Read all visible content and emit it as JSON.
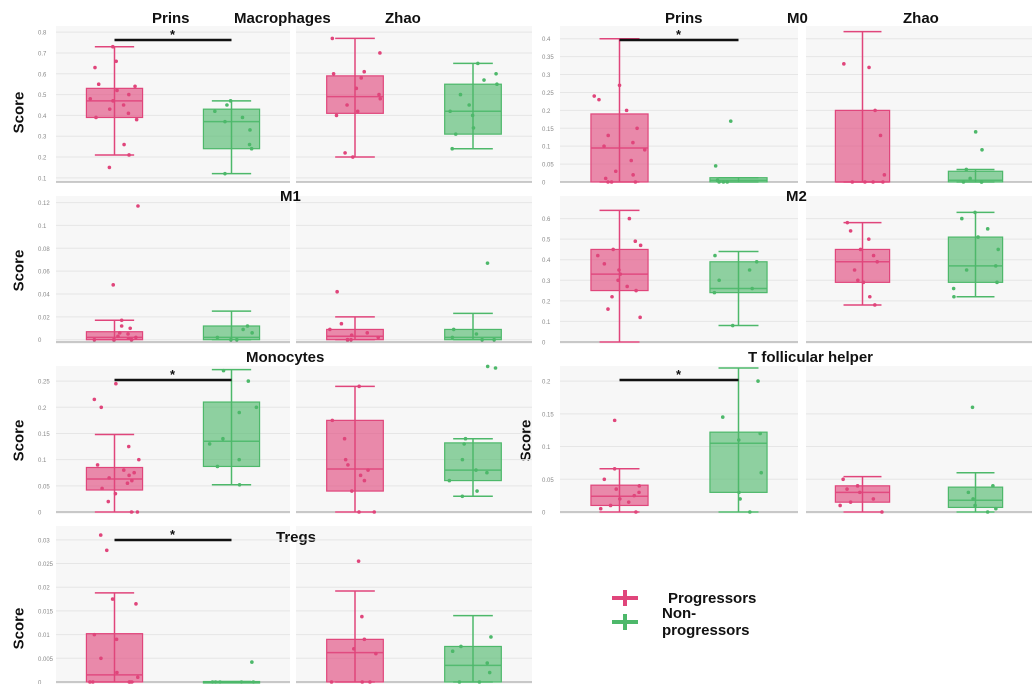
{
  "colors": {
    "progressors": "#e0457b",
    "non_progressors": "#4db86a",
    "bracket": "#111111",
    "panel_bg": "#f7f7f7",
    "grid": "#e6e6e6",
    "tick": "#888888"
  },
  "labels": {
    "score": "Score",
    "prins": "Prins",
    "zhao": "Zhao",
    "macrophages": "Macrophages",
    "m0": "M0",
    "m1": "M1",
    "m2": "M2",
    "monocytes": "Monocytes",
    "tfh": "T follicular helper",
    "tregs": "Tregs",
    "star": "*"
  },
  "legend": [
    {
      "label": "Progressors",
      "color": "#e0457b"
    },
    {
      "label": "Non-progressors",
      "color": "#4db86a"
    }
  ],
  "chart_data": [
    {
      "type": "box",
      "cell": "Macrophages",
      "dataset": "Prins",
      "ylim": [
        0.08,
        0.82
      ],
      "ticks": [
        "0.1",
        "0.2",
        "0.3",
        "0.4",
        "0.5",
        "0.6",
        "0.7",
        "0.8"
      ],
      "tickvals": [
        0.1,
        0.2,
        0.3,
        0.4,
        0.5,
        0.6,
        0.7,
        0.8
      ],
      "significant": true,
      "groups": [
        {
          "group": "Progressors",
          "min": 0.21,
          "q1": 0.39,
          "median": 0.47,
          "q3": 0.53,
          "max": 0.73,
          "points": [
            0.15,
            0.21,
            0.26,
            0.38,
            0.39,
            0.41,
            0.43,
            0.45,
            0.47,
            0.48,
            0.5,
            0.52,
            0.54,
            0.55,
            0.63,
            0.66,
            0.73
          ]
        },
        {
          "group": "Non-progressors",
          "min": 0.12,
          "q1": 0.24,
          "median": 0.37,
          "q3": 0.43,
          "max": 0.47,
          "points": [
            0.12,
            0.24,
            0.26,
            0.33,
            0.37,
            0.39,
            0.42,
            0.45,
            0.47
          ]
        }
      ]
    },
    {
      "type": "box",
      "cell": "Macrophages",
      "dataset": "Zhao",
      "ylim": [
        0.08,
        0.82
      ],
      "significant": false,
      "groups": [
        {
          "group": "Progressors",
          "min": 0.2,
          "q1": 0.41,
          "median": 0.49,
          "q3": 0.59,
          "max": 0.77,
          "points": [
            0.2,
            0.22,
            0.4,
            0.42,
            0.45,
            0.48,
            0.5,
            0.53,
            0.58,
            0.6,
            0.61,
            0.7,
            0.77
          ]
        },
        {
          "group": "Non-progressors",
          "min": 0.24,
          "q1": 0.31,
          "median": 0.42,
          "q3": 0.55,
          "max": 0.65,
          "points": [
            0.24,
            0.31,
            0.34,
            0.4,
            0.42,
            0.45,
            0.5,
            0.55,
            0.57,
            0.6,
            0.65
          ]
        }
      ]
    },
    {
      "type": "box",
      "cell": "M0",
      "dataset": "Prins",
      "ylim": [
        0,
        0.43
      ],
      "ticks": [
        "0",
        "0.05",
        "0.1",
        "0.15",
        "0.2",
        "0.25",
        "0.3",
        "0.35",
        "0.4"
      ],
      "tickvals": [
        0,
        0.05,
        0.1,
        0.15,
        0.2,
        0.25,
        0.3,
        0.35,
        0.4
      ],
      "significant": true,
      "groups": [
        {
          "group": "Progressors",
          "min": 0,
          "q1": 0,
          "median": 0.095,
          "q3": 0.19,
          "max": 0.4,
          "points": [
            0,
            0,
            0,
            0.01,
            0.02,
            0.03,
            0.06,
            0.09,
            0.1,
            0.11,
            0.13,
            0.15,
            0.2,
            0.23,
            0.24,
            0.27
          ]
        },
        {
          "group": "Non-progressors",
          "min": 0,
          "q1": 0,
          "median": 0.005,
          "q3": 0.012,
          "max": 0.012,
          "points": [
            0,
            0,
            0,
            0.005,
            0.045,
            0.17
          ]
        }
      ]
    },
    {
      "type": "box",
      "cell": "M0",
      "dataset": "Zhao",
      "ylim": [
        0,
        0.43
      ],
      "significant": false,
      "groups": [
        {
          "group": "Progressors",
          "min": 0,
          "q1": 0,
          "median": 0,
          "q3": 0.2,
          "max": 0.42,
          "points": [
            0,
            0,
            0,
            0,
            0.02,
            0.13,
            0.2,
            0.32,
            0.33
          ]
        },
        {
          "group": "Non-progressors",
          "min": 0,
          "q1": 0,
          "median": 0.005,
          "q3": 0.03,
          "max": 0.035,
          "points": [
            0,
            0,
            0,
            0.01,
            0.035,
            0.09,
            0.14
          ]
        }
      ]
    },
    {
      "type": "box",
      "cell": "M1",
      "dataset": "Prins",
      "ylim": [
        -0.002,
        0.124
      ],
      "ticks": [
        "0",
        "0.02",
        "0.04",
        "0.06",
        "0.08",
        "0.1",
        "0.12"
      ],
      "tickvals": [
        0,
        0.02,
        0.04,
        0.06,
        0.08,
        0.1,
        0.12
      ],
      "significant": false,
      "groups": [
        {
          "group": "Progressors",
          "min": 0,
          "q1": 0,
          "median": 0.002,
          "q3": 0.007,
          "max": 0.017,
          "points": [
            0,
            0,
            0,
            0,
            0.001,
            0.002,
            0.003,
            0.005,
            0.006,
            0.01,
            0.012,
            0.017,
            0.048,
            0.117
          ]
        },
        {
          "group": "Non-progressors",
          "min": 0,
          "q1": 0,
          "median": 0.002,
          "q3": 0.012,
          "max": 0.025,
          "points": [
            0,
            0,
            0.002,
            0.006,
            0.009,
            0.012
          ]
        }
      ]
    },
    {
      "type": "box",
      "cell": "M1",
      "dataset": "Zhao",
      "ylim": [
        -0.002,
        0.124
      ],
      "significant": false,
      "groups": [
        {
          "group": "Progressors",
          "min": 0,
          "q1": 0,
          "median": 0.003,
          "q3": 0.009,
          "max": 0.02,
          "points": [
            0,
            0,
            0,
            0.002,
            0.004,
            0.006,
            0.009,
            0.014,
            0.042
          ]
        },
        {
          "group": "Non-progressors",
          "min": 0,
          "q1": 0,
          "median": 0.002,
          "q3": 0.009,
          "max": 0.023,
          "points": [
            0,
            0,
            0.002,
            0.005,
            0.009,
            0.067
          ]
        }
      ]
    },
    {
      "type": "box",
      "cell": "M2",
      "dataset": "Prins",
      "ylim": [
        0,
        0.7
      ],
      "ticks": [
        "0",
        "0.1",
        "0.2",
        "0.3",
        "0.4",
        "0.5",
        "0.6"
      ],
      "tickvals": [
        0,
        0.1,
        0.2,
        0.3,
        0.4,
        0.5,
        0.6
      ],
      "significant": false,
      "groups": [
        {
          "group": "Progressors",
          "min": 0,
          "q1": 0.25,
          "median": 0.33,
          "q3": 0.45,
          "max": 0.64,
          "points": [
            0.12,
            0.16,
            0.22,
            0.25,
            0.27,
            0.3,
            0.33,
            0.35,
            0.38,
            0.42,
            0.45,
            0.47,
            0.49,
            0.6
          ]
        },
        {
          "group": "Non-progressors",
          "min": 0.08,
          "q1": 0.24,
          "median": 0.26,
          "q3": 0.39,
          "max": 0.44,
          "points": [
            0.08,
            0.24,
            0.26,
            0.3,
            0.35,
            0.39,
            0.42
          ]
        }
      ]
    },
    {
      "type": "box",
      "cell": "M2",
      "dataset": "Zhao",
      "ylim": [
        0,
        0.7
      ],
      "significant": false,
      "groups": [
        {
          "group": "Progressors",
          "min": 0.18,
          "q1": 0.29,
          "median": 0.39,
          "q3": 0.45,
          "max": 0.58,
          "points": [
            0.18,
            0.22,
            0.29,
            0.3,
            0.35,
            0.39,
            0.42,
            0.45,
            0.5,
            0.54,
            0.58
          ]
        },
        {
          "group": "Non-progressors",
          "min": 0.22,
          "q1": 0.29,
          "median": 0.37,
          "q3": 0.51,
          "max": 0.63,
          "points": [
            0.22,
            0.26,
            0.29,
            0.35,
            0.37,
            0.45,
            0.51,
            0.55,
            0.6,
            0.63
          ]
        }
      ]
    },
    {
      "type": "box",
      "cell": "Monocytes",
      "dataset": "Prins",
      "ylim": [
        0,
        0.275
      ],
      "ticks": [
        "0",
        "0.05",
        "0.1",
        "0.15",
        "0.2",
        "0.25"
      ],
      "tickvals": [
        0,
        0.05,
        0.1,
        0.15,
        0.2,
        0.25
      ],
      "significant": true,
      "groups": [
        {
          "group": "Progressors",
          "min": 0,
          "q1": 0.042,
          "median": 0.063,
          "q3": 0.085,
          "max": 0.148,
          "points": [
            0,
            0,
            0.02,
            0.035,
            0.045,
            0.055,
            0.06,
            0.065,
            0.07,
            0.075,
            0.08,
            0.09,
            0.1,
            0.125,
            0.2,
            0.215,
            0.245
          ]
        },
        {
          "group": "Non-progressors",
          "min": 0.052,
          "q1": 0.087,
          "median": 0.135,
          "q3": 0.21,
          "max": 0.272,
          "points": [
            0.052,
            0.087,
            0.1,
            0.13,
            0.14,
            0.19,
            0.2,
            0.25,
            0.27
          ]
        }
      ]
    },
    {
      "type": "box",
      "cell": "Monocytes",
      "dataset": "Zhao",
      "ylim": [
        0,
        0.275
      ],
      "significant": false,
      "groups": [
        {
          "group": "Progressors",
          "min": 0,
          "q1": 0.04,
          "median": 0.082,
          "q3": 0.175,
          "max": 0.24,
          "points": [
            0,
            0,
            0.04,
            0.06,
            0.07,
            0.08,
            0.09,
            0.1,
            0.14,
            0.175,
            0.24
          ]
        },
        {
          "group": "Non-progressors",
          "min": 0.03,
          "q1": 0.06,
          "median": 0.08,
          "q3": 0.132,
          "max": 0.14,
          "points": [
            0.03,
            0.04,
            0.06,
            0.075,
            0.08,
            0.1,
            0.13,
            0.14,
            0.275,
            0.278
          ]
        }
      ]
    },
    {
      "type": "box",
      "cell": "T follicular helper",
      "dataset": "Prins",
      "ylim": [
        0,
        0.22
      ],
      "ticks": [
        "0",
        "0.05",
        "0.1",
        "0.15",
        "0.2"
      ],
      "tickvals": [
        0,
        0.05,
        0.1,
        0.15,
        0.2
      ],
      "significant": true,
      "groups": [
        {
          "group": "Progressors",
          "min": 0,
          "q1": 0.01,
          "median": 0.024,
          "q3": 0.041,
          "max": 0.066,
          "points": [
            0,
            0.005,
            0.01,
            0.015,
            0.02,
            0.025,
            0.03,
            0.035,
            0.04,
            0.05,
            0.066,
            0.14
          ]
        },
        {
          "group": "Non-progressors",
          "min": 0,
          "q1": 0.03,
          "median": 0.105,
          "q3": 0.122,
          "max": 0.22,
          "points": [
            0,
            0.02,
            0.03,
            0.06,
            0.11,
            0.12,
            0.145,
            0.2
          ]
        }
      ]
    },
    {
      "type": "box",
      "cell": "T follicular helper",
      "dataset": "Zhao",
      "ylim": [
        0,
        0.22
      ],
      "significant": false,
      "groups": [
        {
          "group": "Progressors",
          "min": 0,
          "q1": 0.015,
          "median": 0.03,
          "q3": 0.04,
          "max": 0.054,
          "points": [
            0,
            0.01,
            0.015,
            0.02,
            0.03,
            0.035,
            0.04,
            0.05
          ]
        },
        {
          "group": "Non-progressors",
          "min": 0,
          "q1": 0.007,
          "median": 0.018,
          "q3": 0.038,
          "max": 0.06,
          "points": [
            0,
            0.005,
            0.01,
            0.02,
            0.03,
            0.04,
            0.16
          ]
        }
      ]
    },
    {
      "type": "box",
      "cell": "Tregs",
      "dataset": "Prins",
      "ylim": [
        0,
        0.0325
      ],
      "ticks": [
        "0",
        "0.005",
        "0.01",
        "0.015",
        "0.02",
        "0.025",
        "0.03"
      ],
      "tickvals": [
        0,
        0.005,
        0.01,
        0.015,
        0.02,
        0.025,
        0.03
      ],
      "significant": true,
      "groups": [
        {
          "group": "Progressors",
          "min": 0,
          "q1": 0,
          "median": 0.0015,
          "q3": 0.0102,
          "max": 0.0188,
          "points": [
            0,
            0,
            0,
            0,
            0,
            0.001,
            0.002,
            0.005,
            0.009,
            0.01,
            0.0165,
            0.0175,
            0.0278,
            0.031
          ]
        },
        {
          "group": "Non-progressors",
          "min": 0,
          "q1": 0,
          "median": 0,
          "q3": 0.0001,
          "max": 0.0001,
          "points": [
            0,
            0,
            0,
            0,
            0,
            0.0042
          ]
        }
      ]
    },
    {
      "type": "box",
      "cell": "Tregs",
      "dataset": "Zhao",
      "ylim": [
        0,
        0.0325
      ],
      "significant": false,
      "groups": [
        {
          "group": "Progressors",
          "min": 0,
          "q1": 0,
          "median": 0.0062,
          "q3": 0.009,
          "max": 0.0192,
          "points": [
            0,
            0,
            0,
            0.006,
            0.007,
            0.009,
            0.0138,
            0.0255
          ]
        },
        {
          "group": "Non-progressors",
          "min": 0,
          "q1": 0,
          "median": 0.0035,
          "q3": 0.0075,
          "max": 0.014,
          "points": [
            0,
            0,
            0.002,
            0.004,
            0.0065,
            0.0075,
            0.0095
          ]
        }
      ]
    }
  ]
}
